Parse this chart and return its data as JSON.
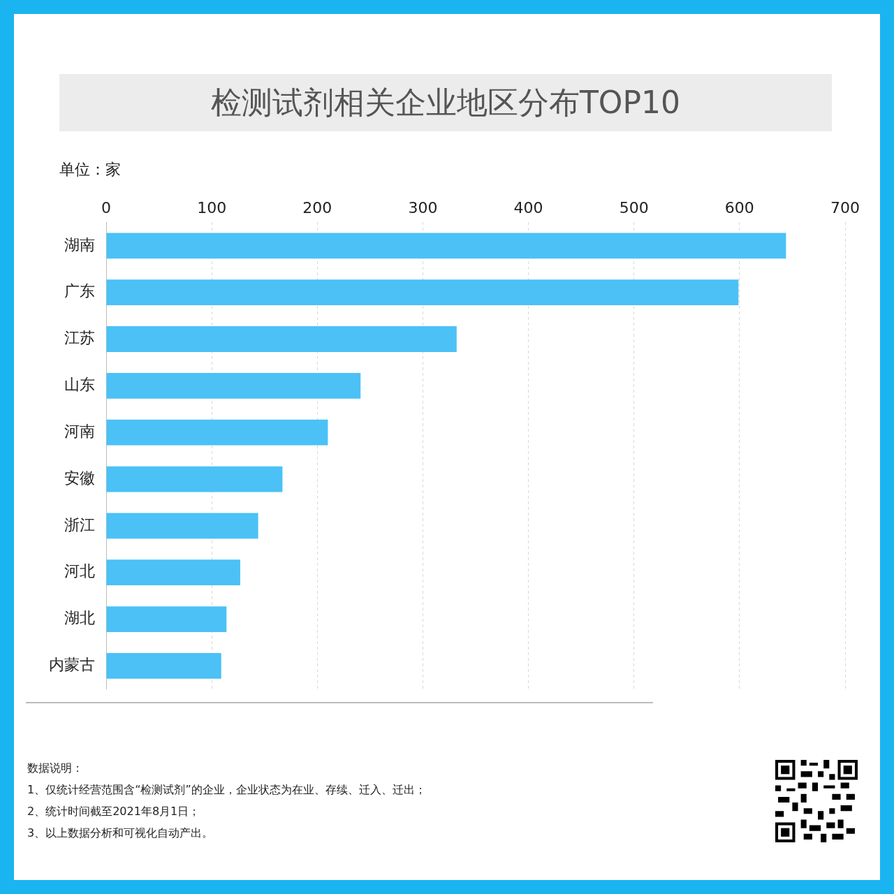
{
  "chart_data": {
    "type": "bar",
    "orientation": "horizontal",
    "title": "检测试剂相关企业地区分布TOP10",
    "subtitle": "单位：家",
    "categories": [
      "湖南",
      "广东",
      "江苏",
      "山东",
      "河南",
      "安徽",
      "浙江",
      "河北",
      "湖北",
      "内蒙古"
    ],
    "values": [
      644,
      599,
      332,
      241,
      210,
      167,
      144,
      127,
      114,
      109
    ],
    "color": "#4bc1f6",
    "xlim": [
      0,
      700
    ],
    "xticks": [
      0,
      100,
      200,
      300,
      400,
      500,
      600,
      700
    ],
    "grid": "x",
    "legend": false,
    "annotations": [
      "数据说明：",
      "1、仅统计经营范围含“检测试剂”的企业，企业状态为在业、存续、迁入、迁出；",
      "2、统计时间截至2021年8月1日；",
      "3、以上数据分析和可视化自动产出。"
    ]
  }
}
